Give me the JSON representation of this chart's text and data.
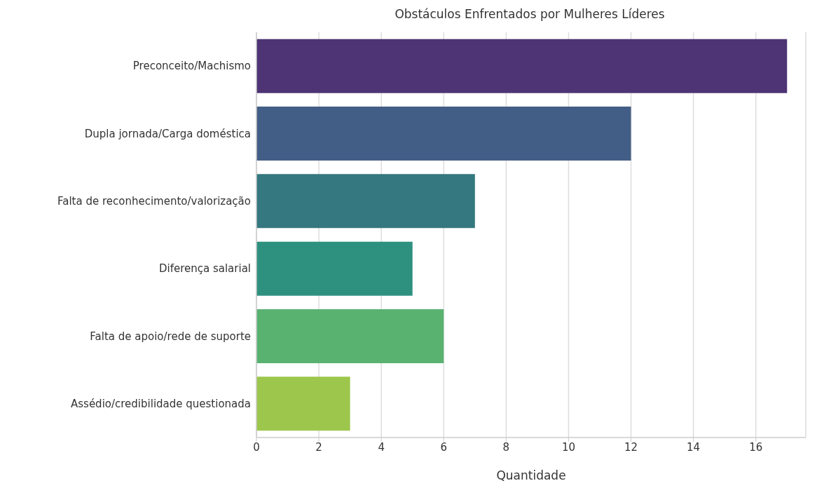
{
  "chart_data": {
    "type": "bar",
    "orientation": "horizontal",
    "title": "Obstáculos Enfrentados por Mulheres Líderes",
    "xlabel": "Quantidade",
    "categories": [
      "Preconceito/Machismo",
      "Dupla jornada/Carga doméstica",
      "Falta de reconhecimento/valorização",
      "Diferença salarial",
      "Falta de apoio/rede de suporte",
      "Assédio/credibilidade questionada"
    ],
    "values": [
      17,
      12,
      7,
      5,
      6,
      3
    ],
    "colors": [
      "#4e3474",
      "#435e86",
      "#35787f",
      "#2e917f",
      "#5ab271",
      "#9dc64c"
    ],
    "xlim": [
      0,
      17.6
    ],
    "xticks": [
      0,
      2,
      4,
      6,
      8,
      10,
      12,
      14,
      16
    ],
    "grid": "x",
    "legend": false
  }
}
